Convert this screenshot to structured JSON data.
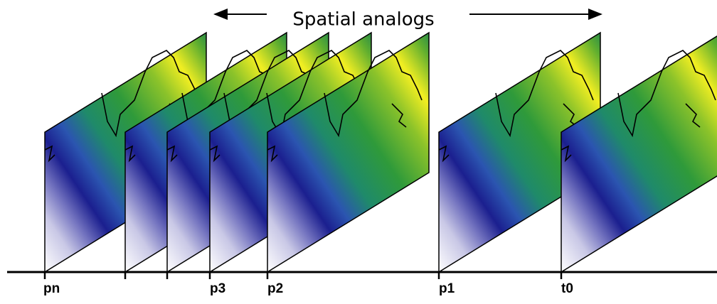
{
  "header": {
    "title": "Spatial analogs"
  },
  "timeline": {
    "labels": [
      "pn",
      "p3",
      "p2",
      "p1",
      "t0"
    ]
  }
}
